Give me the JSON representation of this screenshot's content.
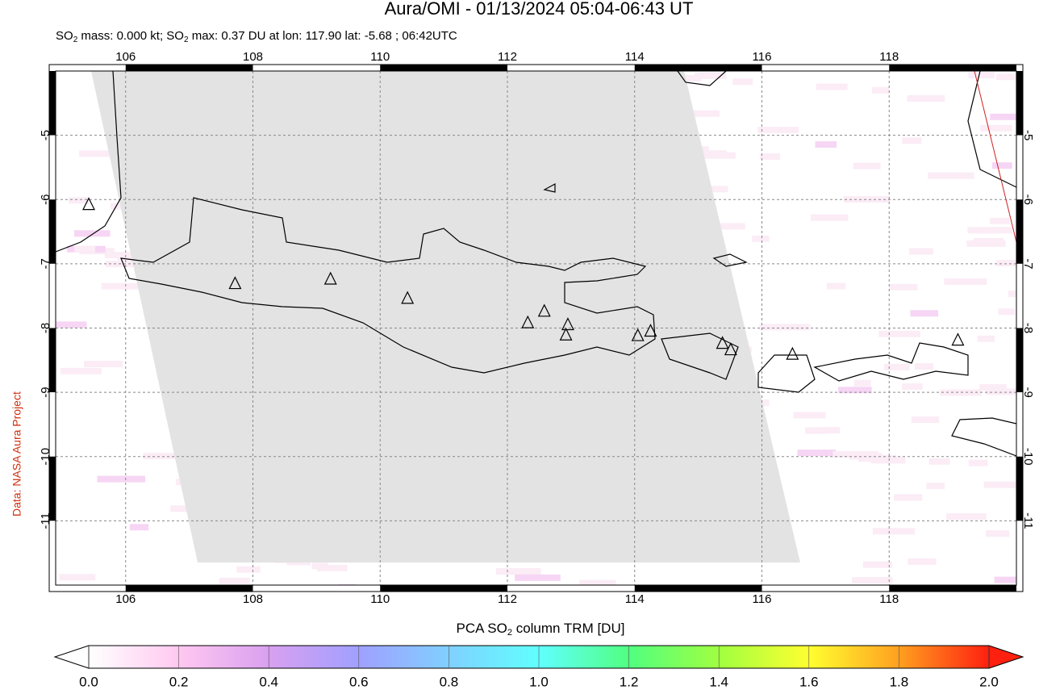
{
  "header": {
    "title": "Aura/OMI - 01/13/2024 05:04-06:43 UT",
    "subtitle_parts": [
      "SO",
      "2",
      " mass: 0.000 kt; SO",
      "2",
      " max: 0.37 DU at lon: 117.90 lat: -5.68 ; 06:42UTC"
    ]
  },
  "credit": "Data: NASA Aura Project",
  "map": {
    "xlim": [
      104.9,
      120
    ],
    "ylim": [
      -12,
      -4
    ],
    "xticks": [
      106,
      108,
      110,
      112,
      114,
      116,
      118
    ],
    "yticks": [
      -5,
      -6,
      -7,
      -8,
      -9,
      -10,
      -11
    ],
    "grid": true,
    "volcanoes": [
      [
        105.42,
        -6.08
      ],
      [
        107.72,
        -7.31
      ],
      [
        109.22,
        -7.24
      ],
      [
        110.43,
        -7.54
      ],
      [
        112.32,
        -7.92
      ],
      [
        112.58,
        -7.74
      ],
      [
        112.95,
        -7.95
      ],
      [
        112.92,
        -8.11
      ],
      [
        114.05,
        -8.12
      ],
      [
        114.25,
        -8.05
      ],
      [
        115.38,
        -8.24
      ],
      [
        115.51,
        -8.34
      ],
      [
        116.48,
        -8.41
      ],
      [
        119.08,
        -8.19
      ]
    ]
  },
  "colorbar": {
    "label_parts": [
      "PCA SO",
      "2",
      " column TRM [DU]"
    ],
    "lim": [
      0,
      2
    ],
    "colors": [
      "#ffffff",
      "#ffc8f0",
      "#d9a0f0",
      "#a0a0ff",
      "#80d0ff",
      "#60ffff",
      "#50ff80",
      "#a0ff40",
      "#ffff30",
      "#ffa020",
      "#ff2010"
    ],
    "ticks": [
      {
        "value": 0,
        "label": "0.0"
      },
      {
        "value": 0.2,
        "label": "0.2"
      },
      {
        "value": 0.4,
        "label": "0.4"
      },
      {
        "value": 0.6,
        "label": "0.6"
      },
      {
        "value": 0.8,
        "label": "0.8"
      },
      {
        "value": 1,
        "label": "1.0"
      },
      {
        "value": 1.2,
        "label": "1.2"
      },
      {
        "value": 1.4,
        "label": "1.4"
      },
      {
        "value": 1.6,
        "label": "1.6"
      },
      {
        "value": 1.8,
        "label": "1.8"
      },
      {
        "value": 2,
        "label": "2.0"
      }
    ]
  }
}
